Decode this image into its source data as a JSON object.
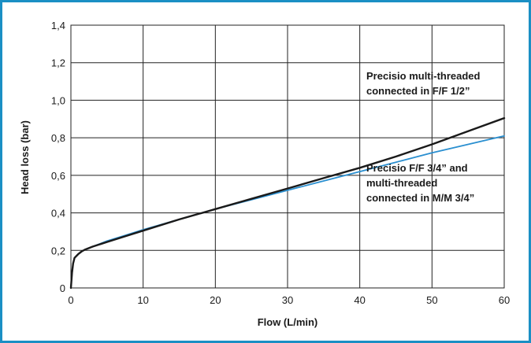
{
  "chart_data": {
    "type": "line",
    "xlabel": "Flow (L/min)",
    "ylabel": "Head loss (bar)",
    "xlim": [
      0,
      60
    ],
    "ylim": [
      0,
      1.4
    ],
    "x_ticks": [
      "0",
      "10",
      "20",
      "30",
      "40",
      "50",
      "60"
    ],
    "y_ticks": [
      "0",
      "0,2",
      "0,4",
      "0,6",
      "0,8",
      "1,0",
      "1,2",
      "1,4"
    ],
    "grid": true,
    "colors": {
      "frame": "#1b8fc4",
      "series_1": "#1a1a1a",
      "series_2": "#2a8fd0",
      "grid": "#222222"
    },
    "series": [
      {
        "name": "Precisio multi-threaded connected in F/F 1/2”",
        "label_lines": [
          "Precisio multi-threaded",
          "connected in F/F 1/2”"
        ],
        "x": [
          0,
          0.15,
          0.3,
          0.5,
          1,
          1.5,
          2,
          3,
          5,
          7.5,
          10,
          15,
          20,
          25,
          30,
          35,
          40,
          45,
          50,
          55,
          60
        ],
        "y": [
          0,
          0.08,
          0.13,
          0.16,
          0.18,
          0.195,
          0.205,
          0.22,
          0.245,
          0.275,
          0.305,
          0.365,
          0.42,
          0.475,
          0.53,
          0.585,
          0.64,
          0.7,
          0.765,
          0.835,
          0.905
        ]
      },
      {
        "name": "Precisio F/F 3/4” and multi-threaded connected in M/M 3/4”",
        "label_lines": [
          "Precisio F/F 3/4” and",
          "multi-threaded",
          "connected in M/M 3/4”"
        ],
        "x": [
          0,
          0.15,
          0.3,
          0.5,
          1,
          1.5,
          2,
          3,
          5,
          7.5,
          10,
          15,
          20,
          25,
          30,
          35,
          40,
          45,
          50,
          55,
          60
        ],
        "y": [
          0,
          0.08,
          0.13,
          0.16,
          0.18,
          0.195,
          0.205,
          0.22,
          0.25,
          0.28,
          0.31,
          0.365,
          0.42,
          0.47,
          0.52,
          0.57,
          0.62,
          0.67,
          0.72,
          0.765,
          0.81
        ]
      }
    ]
  }
}
